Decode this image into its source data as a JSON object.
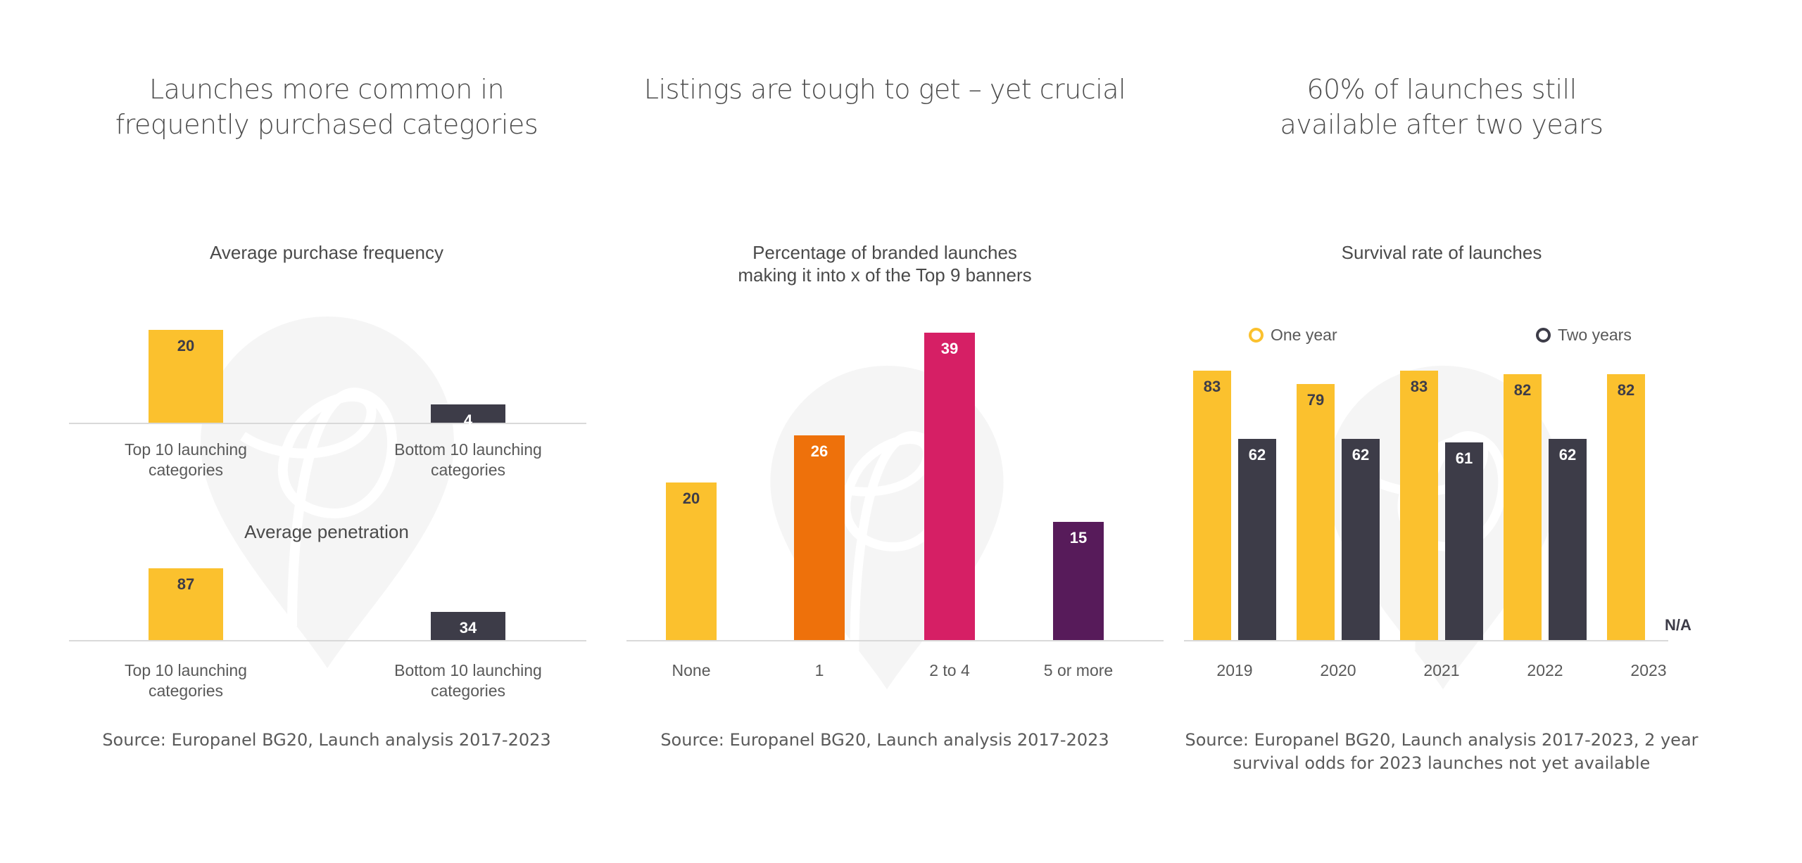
{
  "colors": {
    "yellow": "#FBC12E",
    "dark": "#3D3C48",
    "orange": "#EE710B",
    "pink": "#D61F65",
    "purple": "#571B5A",
    "text_dark": "#3D3C48",
    "text_light": "#FFFFFF"
  },
  "panels": [
    {
      "title_lines": [
        "Launches more common in",
        "frequently purchased categories"
      ],
      "source": "Source: Europanel BG20, Launch analysis 2017-2023"
    },
    {
      "title_lines": [
        "Listings are tough to get – yet crucial"
      ],
      "source": "Source: Europanel BG20, Launch analysis 2017-2023"
    },
    {
      "title_lines": [
        "60% of launches still",
        "available after two years"
      ],
      "source_lines": [
        "Source: Europanel BG20, Launch analysis 2017-2023, 2 year",
        "survival odds for 2023 launches not yet available"
      ]
    }
  ],
  "chart_data": [
    {
      "type": "bar",
      "title": "Average purchase frequency",
      "categories": [
        [
          "Top 10 launching",
          "categories"
        ],
        [
          "Bottom 10 launching",
          "categories"
        ]
      ],
      "values": [
        20,
        4
      ],
      "colors": [
        "yellow",
        "dark"
      ]
    },
    {
      "type": "bar",
      "title": "Average penetration",
      "categories": [
        [
          "Top 10 launching",
          "categories"
        ],
        [
          "Bottom 10 launching",
          "categories"
        ]
      ],
      "values": [
        87,
        34
      ],
      "colors": [
        "yellow",
        "dark"
      ]
    },
    {
      "type": "bar",
      "title_lines": [
        "Percentage of branded launches",
        "making it into x of the Top 9 banners"
      ],
      "categories": [
        "None",
        "1",
        "2 to 4",
        "5 or more"
      ],
      "values": [
        20,
        26,
        39,
        15
      ],
      "colors": [
        "yellow",
        "orange",
        "pink",
        "purple"
      ]
    },
    {
      "type": "bar",
      "title": "Survival rate of launches",
      "categories": [
        "2019",
        "2020",
        "2021",
        "2022",
        "2023"
      ],
      "legend": "top",
      "series": [
        {
          "name": "One year",
          "values": [
            83,
            79,
            83,
            82,
            82
          ],
          "color": "yellow"
        },
        {
          "name": "Two years",
          "values": [
            62,
            62,
            61,
            62,
            null
          ],
          "color": "dark"
        }
      ],
      "missing_label": "N/A"
    }
  ]
}
